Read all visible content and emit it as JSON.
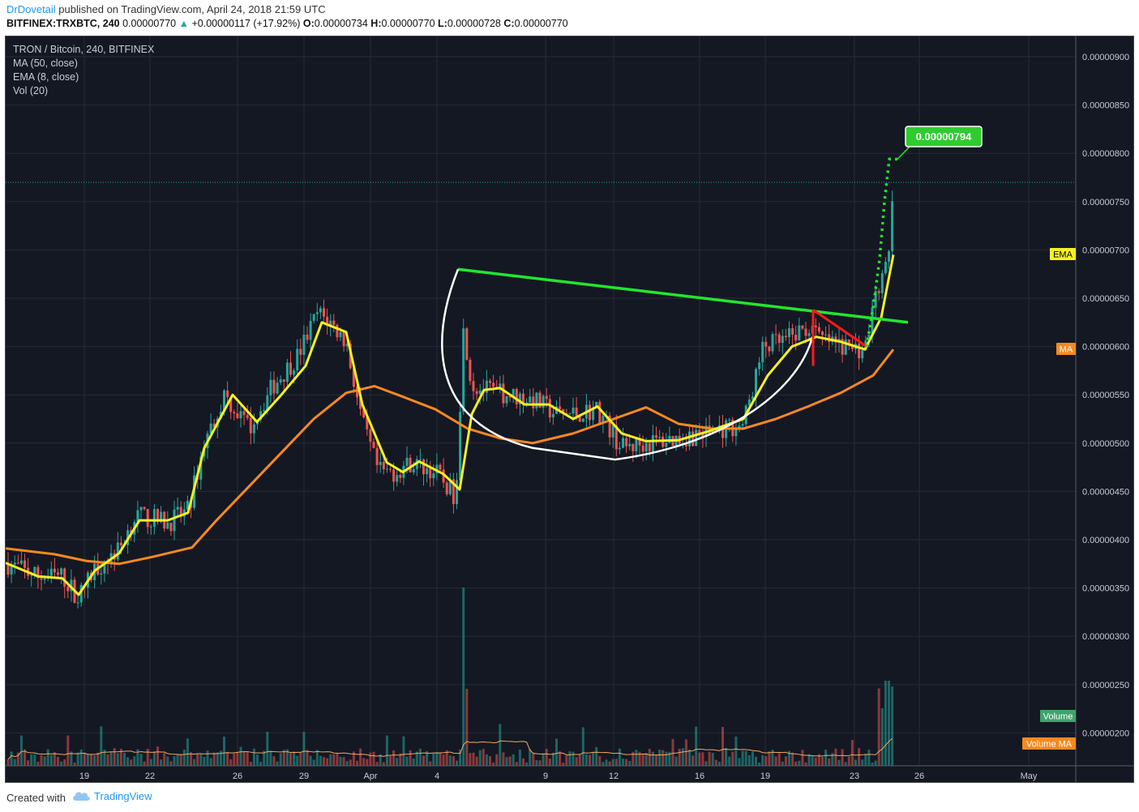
{
  "header": {
    "author": "DrDovetail",
    "published_text": " published on TradingView.com, April 24, 2018 21:59 UTC",
    "symbol": "BITFINEX:TRXBTC, 240",
    "last": "0.00000770",
    "change": "+0.00000117 (+17.92%)",
    "open_label": "O:",
    "open": "0.00000734",
    "high_label": "H:",
    "high": "0.00000770",
    "low_label": "L:",
    "low": "0.00000728",
    "close_label": "C:",
    "close": "0.00000770"
  },
  "legend": {
    "title": "TRON / Bitcoin, 240, BITFINEX",
    "ma": "MA (50, close)",
    "ema": "EMA (8, close)",
    "vol": "Vol (20)"
  },
  "price_axis_labels": [
    "0.00000900",
    "0.00000850",
    "0.00000800",
    "0.00000750",
    "0.00000700",
    "0.00000650",
    "0.00000600",
    "0.00000550",
    "0.00000500",
    "0.00000450",
    "0.00000400",
    "0.00000350",
    "0.00000300",
    "0.00000250",
    "0.00000200"
  ],
  "time_axis_labels": [
    "19",
    "22",
    "26",
    "29",
    "Apr",
    "4",
    "9",
    "12",
    "16",
    "19",
    "23",
    "26",
    "May"
  ],
  "badges": {
    "ema": "EMA",
    "ma": "MA",
    "volume": "Volume",
    "volume_ma": "Volume MA",
    "target": "0.00000794"
  },
  "footer": {
    "created_with": "Created with",
    "brand": "TradingView"
  },
  "colors": {
    "background": "#141823",
    "ema": "#f5f023",
    "ma": "#f6891f",
    "up": "#26a69a",
    "down": "#ef5350",
    "trendline": "#21e62f",
    "cup": "#ffffff",
    "flag": "#ff1a1a",
    "target_badge": "#2ecc2e"
  },
  "chart_data": {
    "type": "candlestick",
    "pair": "TRX/BTC",
    "timeframe": "240",
    "y_range": [
      1.7e-06,
      9.2e-06
    ],
    "x_labels": [
      "19",
      "22",
      "26",
      "29",
      "Apr",
      "4",
      "9",
      "12",
      "16",
      "19",
      "23",
      "26",
      "May"
    ],
    "series": [
      {
        "name": "MA (50, close)",
        "points": [
          [
            0,
            3.91e-06
          ],
          [
            60,
            3.85e-06
          ],
          [
            100,
            3.78e-06
          ],
          [
            140,
            3.75e-06
          ],
          [
            180,
            3.82e-06
          ],
          [
            230,
            3.92e-06
          ],
          [
            260,
            4.2e-06
          ],
          [
            300,
            4.55e-06
          ],
          [
            340,
            4.9e-06
          ],
          [
            380,
            5.25e-06
          ],
          [
            420,
            5.52e-06
          ],
          [
            455,
            5.59e-06
          ],
          [
            490,
            5.48e-06
          ],
          [
            530,
            5.35e-06
          ],
          [
            570,
            5.15e-06
          ],
          [
            610,
            5.05e-06
          ],
          [
            650,
            5e-06
          ],
          [
            700,
            5.1e-06
          ],
          [
            750,
            5.25e-06
          ],
          [
            790,
            5.37e-06
          ],
          [
            830,
            5.2e-06
          ],
          [
            870,
            5.15e-06
          ],
          [
            910,
            5.15e-06
          ],
          [
            950,
            5.25e-06
          ],
          [
            990,
            5.38e-06
          ],
          [
            1030,
            5.52e-06
          ],
          [
            1070,
            5.7e-06
          ],
          [
            1095,
            5.97e-06
          ]
        ]
      },
      {
        "name": "EMA (8, close)",
        "points": [
          [
            0,
            3.76e-06
          ],
          [
            40,
            3.62e-06
          ],
          [
            70,
            3.6e-06
          ],
          [
            90,
            3.43e-06
          ],
          [
            110,
            3.68e-06
          ],
          [
            140,
            3.86e-06
          ],
          [
            165,
            4.2e-06
          ],
          [
            200,
            4.2e-06
          ],
          [
            225,
            4.28e-06
          ],
          [
            245,
            4.95e-06
          ],
          [
            280,
            5.5e-06
          ],
          [
            310,
            5.22e-06
          ],
          [
            340,
            5.5e-06
          ],
          [
            370,
            5.8e-06
          ],
          [
            390,
            6.25e-06
          ],
          [
            420,
            6.15e-06
          ],
          [
            440,
            5.4e-06
          ],
          [
            470,
            4.8e-06
          ],
          [
            490,
            4.7e-06
          ],
          [
            510,
            4.81e-06
          ],
          [
            540,
            4.68e-06
          ],
          [
            560,
            4.52e-06
          ],
          [
            575,
            5.3e-06
          ],
          [
            590,
            5.55e-06
          ],
          [
            610,
            5.57e-06
          ],
          [
            640,
            5.4e-06
          ],
          [
            670,
            5.4e-06
          ],
          [
            700,
            5.25e-06
          ],
          [
            730,
            5.38e-06
          ],
          [
            760,
            5.1e-06
          ],
          [
            790,
            5.02e-06
          ],
          [
            830,
            5.03e-06
          ],
          [
            870,
            5.13e-06
          ],
          [
            910,
            5.25e-06
          ],
          [
            940,
            5.7e-06
          ],
          [
            970,
            6e-06
          ],
          [
            1000,
            6.1e-06
          ],
          [
            1030,
            6.05e-06
          ],
          [
            1060,
            5.97e-06
          ],
          [
            1080,
            6.3e-06
          ],
          [
            1095,
            6.95e-06
          ]
        ]
      }
    ],
    "annotations": {
      "target_price": 7.94e-06,
      "last_price": 7.7e-06,
      "trendline": {
        "start_price": 6.8e-06,
        "end_price": 6.25e-06
      },
      "cup_low": 4.83e-06,
      "pattern": "cup and handle"
    },
    "volume_ma_label": "Volume MA"
  }
}
